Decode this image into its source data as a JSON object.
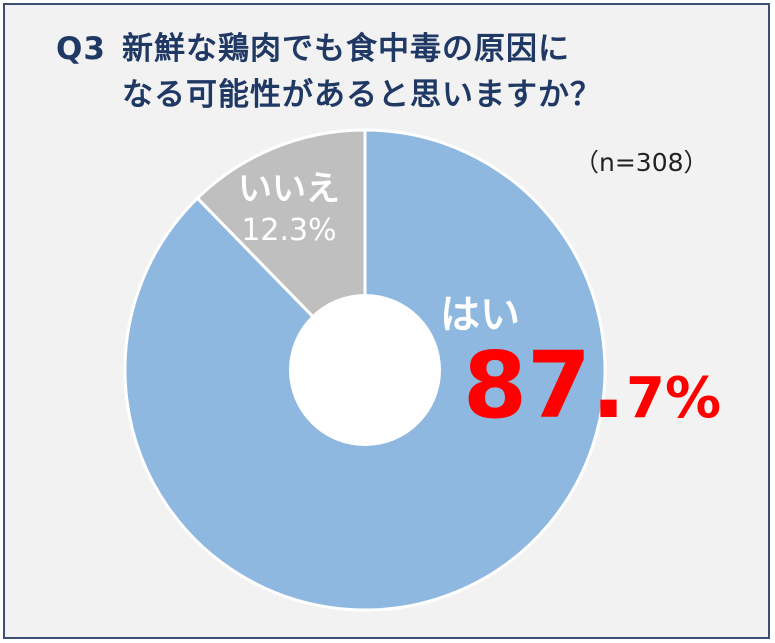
{
  "title": {
    "q_number": "Q3",
    "line1": "新鮮な鶏肉でも食中毒の原因に",
    "line2": "なる可能性があると思いますか？"
  },
  "sample_size": "（n=308）",
  "colors": {
    "yes": "#8fb8e1",
    "no": "#bfbfbf",
    "highlight": "#ff0000",
    "title": "#1f3864"
  },
  "chart_data": {
    "type": "pie",
    "variant": "donut",
    "categories": [
      "はい",
      "いいえ"
    ],
    "values": [
      87.7,
      12.3
    ],
    "labels": {
      "yes": {
        "name": "はい",
        "int": "87",
        "dot": ".",
        "dec": "7",
        "pc": "%"
      },
      "no": {
        "name": "いいえ",
        "value": "12.3%"
      }
    }
  }
}
